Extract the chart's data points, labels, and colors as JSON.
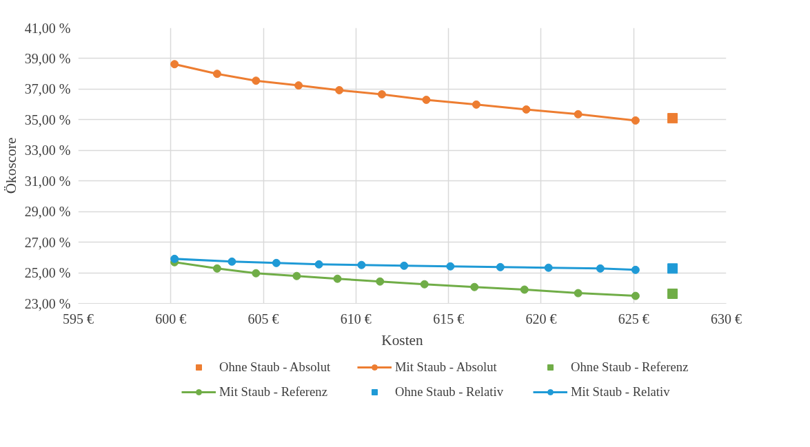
{
  "chart_data": {
    "type": "line",
    "xlabel": "Kosten",
    "ylabel": "Ökoscore",
    "xlim": [
      595,
      630
    ],
    "xticks": [
      {
        "value": 595,
        "label": "595 €"
      },
      {
        "value": 600,
        "label": "600 €"
      },
      {
        "value": 605,
        "label": "605 €"
      },
      {
        "value": 610,
        "label": "610 €"
      },
      {
        "value": 615,
        "label": "615 €"
      },
      {
        "value": 620,
        "label": "620 €"
      },
      {
        "value": 625,
        "label": "625 €"
      },
      {
        "value": 630,
        "label": "630 €"
      }
    ],
    "ylim": [
      23,
      41
    ],
    "yticks": [
      {
        "value": 23,
        "label": "23,00 %"
      },
      {
        "value": 25,
        "label": "25,00 %"
      },
      {
        "value": 27,
        "label": "27,00 %"
      },
      {
        "value": 29,
        "label": "29,00 %"
      },
      {
        "value": 31,
        "label": "31,00 %"
      },
      {
        "value": 33,
        "label": "33,00 %"
      },
      {
        "value": 35,
        "label": "35,00 %"
      },
      {
        "value": 37,
        "label": "37,00 %"
      },
      {
        "value": 39,
        "label": "39,00 %"
      },
      {
        "value": 41,
        "label": "41,00 %"
      }
    ],
    "grid": true,
    "legend": "bottom",
    "series": [
      {
        "name": "Ohne Staub - Absolut",
        "type": "scatter",
        "marker": "square",
        "color": "#ed7d31",
        "x": [
          627.1
        ],
        "values": [
          35.1
        ]
      },
      {
        "name": "Mit Staub - Absolut",
        "marker": "circle",
        "color": "#ed7d31",
        "x": [
          600.2,
          602.5,
          604.6,
          606.9,
          609.1,
          611.4,
          613.8,
          616.5,
          619.2,
          622.0,
          625.1
        ],
        "values": [
          38.63,
          38.0,
          37.55,
          37.24,
          36.93,
          36.66,
          36.3,
          35.99,
          35.67,
          35.36,
          34.95
        ]
      },
      {
        "name": "Ohne Staub - Referenz",
        "type": "scatter",
        "marker": "square",
        "color": "#70ad47",
        "x": [
          627.1
        ],
        "values": [
          23.63
        ]
      },
      {
        "name": "Mit Staub - Referenz",
        "marker": "circle",
        "color": "#70ad47",
        "x": [
          600.2,
          602.5,
          604.6,
          606.8,
          609.0,
          611.3,
          613.7,
          616.4,
          619.1,
          622.0,
          625.1
        ],
        "values": [
          25.69,
          25.28,
          24.97,
          24.79,
          24.61,
          24.43,
          24.25,
          24.07,
          23.9,
          23.67,
          23.49
        ]
      },
      {
        "name": "Ohne Staub - Relativ",
        "type": "scatter",
        "marker": "square",
        "color": "#1f9ad6",
        "x": [
          627.1
        ],
        "values": [
          25.28
        ]
      },
      {
        "name": "Mit Staub - Relativ",
        "marker": "circle",
        "color": "#1f9ad6",
        "x": [
          600.2,
          603.3,
          605.7,
          608.0,
          610.3,
          612.6,
          615.1,
          617.8,
          620.4,
          623.2,
          625.1
        ],
        "values": [
          25.91,
          25.73,
          25.64,
          25.55,
          25.51,
          25.46,
          25.42,
          25.37,
          25.33,
          25.28,
          25.19
        ]
      }
    ]
  }
}
